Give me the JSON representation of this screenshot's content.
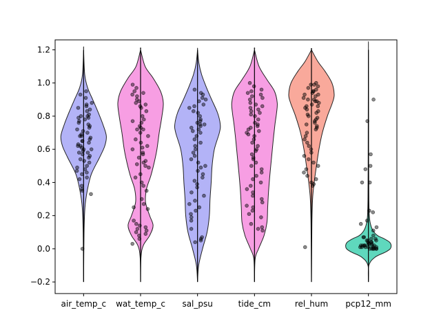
{
  "chart_data": {
    "type": "violin",
    "categories": [
      "air_temp_c",
      "wat_temp_c",
      "sal_psu",
      "tide_cm",
      "rel_hum",
      "pcp12_mm"
    ],
    "ylim": [
      -0.27,
      1.26
    ],
    "yticks": [
      -0.2,
      0.0,
      0.2,
      0.4,
      0.6,
      0.8,
      1.0,
      1.2
    ],
    "ytick_labels": [
      "−0.2",
      "0.0",
      "0.2",
      "0.4",
      "0.6",
      "0.8",
      "1.0",
      "1.2"
    ],
    "title": "",
    "xlabel": "",
    "ylabel": "",
    "grid": false,
    "violins": [
      {
        "category": "air_temp_c",
        "color": "#b3b3f7",
        "range": [
          -0.2,
          1.2
        ],
        "profile": [
          [
            -0.2,
            0.0
          ],
          [
            0.1,
            0.02
          ],
          [
            0.25,
            0.06
          ],
          [
            0.35,
            0.16
          ],
          [
            0.45,
            0.34
          ],
          [
            0.55,
            0.7
          ],
          [
            0.62,
            0.93
          ],
          [
            0.68,
            1.0
          ],
          [
            0.75,
            0.85
          ],
          [
            0.82,
            0.65
          ],
          [
            0.9,
            0.4
          ],
          [
            0.97,
            0.18
          ],
          [
            1.05,
            0.05
          ],
          [
            1.2,
            0.0
          ]
        ],
        "points": [
          0.95,
          0.93,
          0.91,
          0.88,
          0.87,
          0.86,
          0.85,
          0.84,
          0.83,
          0.81,
          0.8,
          0.8,
          0.79,
          0.79,
          0.78,
          0.77,
          0.76,
          0.75,
          0.74,
          0.73,
          0.72,
          0.71,
          0.7,
          0.69,
          0.68,
          0.68,
          0.67,
          0.66,
          0.65,
          0.65,
          0.64,
          0.63,
          0.62,
          0.62,
          0.61,
          0.6,
          0.6,
          0.59,
          0.58,
          0.58,
          0.57,
          0.56,
          0.55,
          0.54,
          0.53,
          0.52,
          0.5,
          0.49,
          0.48,
          0.47,
          0.46,
          0.45,
          0.43,
          0.42,
          0.38,
          0.36,
          0.35,
          0.33,
          0.0
        ]
      },
      {
        "category": "wat_temp_c",
        "color": "#f79ee3",
        "range": [
          -0.2,
          1.2
        ],
        "profile": [
          [
            -0.2,
            0.0
          ],
          [
            -0.05,
            0.02
          ],
          [
            0.02,
            0.12
          ],
          [
            0.08,
            0.4
          ],
          [
            0.14,
            0.55
          ],
          [
            0.2,
            0.4
          ],
          [
            0.28,
            0.22
          ],
          [
            0.36,
            0.26
          ],
          [
            0.44,
            0.45
          ],
          [
            0.52,
            0.6
          ],
          [
            0.6,
            0.72
          ],
          [
            0.7,
            0.82
          ],
          [
            0.8,
            0.94
          ],
          [
            0.88,
            1.0
          ],
          [
            0.95,
            0.88
          ],
          [
            1.03,
            0.55
          ],
          [
            1.1,
            0.2
          ],
          [
            1.2,
            0.0
          ]
        ],
        "points": [
          0.99,
          0.97,
          0.95,
          0.94,
          0.93,
          0.92,
          0.9,
          0.89,
          0.88,
          0.87,
          0.86,
          0.85,
          0.83,
          0.8,
          0.78,
          0.77,
          0.76,
          0.74,
          0.73,
          0.72,
          0.72,
          0.7,
          0.68,
          0.66,
          0.64,
          0.62,
          0.61,
          0.6,
          0.58,
          0.57,
          0.55,
          0.53,
          0.52,
          0.51,
          0.5,
          0.49,
          0.45,
          0.43,
          0.4,
          0.38,
          0.35,
          0.3,
          0.27,
          0.25,
          0.24,
          0.17,
          0.15,
          0.14,
          0.13,
          0.12,
          0.11,
          0.1,
          0.09,
          0.08,
          0.06,
          0.03
        ]
      },
      {
        "category": "sal_psu",
        "color": "#b3b3f7",
        "range": [
          -0.2,
          1.2
        ],
        "profile": [
          [
            -0.2,
            0.0
          ],
          [
            -0.1,
            0.05
          ],
          [
            0.0,
            0.22
          ],
          [
            0.1,
            0.42
          ],
          [
            0.2,
            0.52
          ],
          [
            0.3,
            0.55
          ],
          [
            0.4,
            0.6
          ],
          [
            0.5,
            0.64
          ],
          [
            0.6,
            0.74
          ],
          [
            0.7,
            0.96
          ],
          [
            0.75,
            1.0
          ],
          [
            0.82,
            0.88
          ],
          [
            0.9,
            0.62
          ],
          [
            0.97,
            0.4
          ],
          [
            1.05,
            0.18
          ],
          [
            1.12,
            0.06
          ],
          [
            1.2,
            0.0
          ]
        ],
        "points": [
          0.96,
          0.94,
          0.93,
          0.91,
          0.9,
          0.89,
          0.87,
          0.86,
          0.85,
          0.83,
          0.82,
          0.8,
          0.78,
          0.77,
          0.76,
          0.75,
          0.75,
          0.74,
          0.73,
          0.72,
          0.71,
          0.7,
          0.68,
          0.66,
          0.64,
          0.62,
          0.6,
          0.58,
          0.56,
          0.54,
          0.52,
          0.5,
          0.49,
          0.47,
          0.45,
          0.43,
          0.41,
          0.39,
          0.37,
          0.34,
          0.32,
          0.29,
          0.27,
          0.25,
          0.23,
          0.21,
          0.19,
          0.17,
          0.12,
          0.07,
          0.06,
          0.05,
          0.04
        ]
      },
      {
        "category": "tide_cm",
        "color": "#f79ee3",
        "range": [
          -0.2,
          1.2
        ],
        "profile": [
          [
            -0.2,
            0.0
          ],
          [
            -0.06,
            0.03
          ],
          [
            0.0,
            0.18
          ],
          [
            0.08,
            0.42
          ],
          [
            0.16,
            0.55
          ],
          [
            0.25,
            0.58
          ],
          [
            0.35,
            0.62
          ],
          [
            0.45,
            0.68
          ],
          [
            0.55,
            0.75
          ],
          [
            0.65,
            0.82
          ],
          [
            0.75,
            0.9
          ],
          [
            0.82,
            0.97
          ],
          [
            0.88,
            1.0
          ],
          [
            0.95,
            0.88
          ],
          [
            1.02,
            0.55
          ],
          [
            1.1,
            0.2
          ],
          [
            1.2,
            0.0
          ]
        ],
        "points": [
          1.0,
          0.98,
          0.96,
          0.95,
          0.94,
          0.93,
          0.92,
          0.91,
          0.9,
          0.88,
          0.87,
          0.86,
          0.85,
          0.84,
          0.83,
          0.82,
          0.81,
          0.8,
          0.78,
          0.76,
          0.75,
          0.74,
          0.73,
          0.72,
          0.71,
          0.7,
          0.69,
          0.68,
          0.66,
          0.64,
          0.62,
          0.6,
          0.59,
          0.57,
          0.55,
          0.54,
          0.52,
          0.5,
          0.48,
          0.46,
          0.44,
          0.42,
          0.4,
          0.38,
          0.36,
          0.34,
          0.32,
          0.3,
          0.28,
          0.26,
          0.25,
          0.23,
          0.21,
          0.19,
          0.15,
          0.13,
          0.12,
          0.11
        ]
      },
      {
        "category": "rel_hum",
        "color": "#f9a99b",
        "range": [
          -0.2,
          1.2
        ],
        "profile": [
          [
            -0.2,
            0.0
          ],
          [
            0.15,
            0.02
          ],
          [
            0.3,
            0.05
          ],
          [
            0.4,
            0.12
          ],
          [
            0.5,
            0.22
          ],
          [
            0.6,
            0.33
          ],
          [
            0.7,
            0.48
          ],
          [
            0.8,
            0.7
          ],
          [
            0.88,
            0.92
          ],
          [
            0.93,
            1.0
          ],
          [
            1.0,
            0.9
          ],
          [
            1.07,
            0.6
          ],
          [
            1.13,
            0.28
          ],
          [
            1.2,
            0.0
          ]
        ],
        "points": [
          1.0,
          0.99,
          0.99,
          0.98,
          0.97,
          0.96,
          0.95,
          0.95,
          0.94,
          0.93,
          0.93,
          0.92,
          0.91,
          0.9,
          0.9,
          0.89,
          0.89,
          0.88,
          0.87,
          0.86,
          0.86,
          0.85,
          0.84,
          0.83,
          0.82,
          0.81,
          0.8,
          0.79,
          0.78,
          0.77,
          0.76,
          0.75,
          0.74,
          0.73,
          0.72,
          0.7,
          0.68,
          0.66,
          0.64,
          0.62,
          0.6,
          0.58,
          0.56,
          0.54,
          0.52,
          0.5,
          0.48,
          0.46,
          0.44,
          0.42,
          0.4,
          0.39,
          0.38,
          0.01
        ]
      },
      {
        "category": "pcp12_mm",
        "color": "#5fd8bd",
        "range": [
          -0.2,
          1.2
        ],
        "profile": [
          [
            -0.2,
            0.0
          ],
          [
            -0.1,
            0.02
          ],
          [
            -0.05,
            0.3
          ],
          [
            -0.02,
            0.75
          ],
          [
            0.0,
            0.96
          ],
          [
            0.02,
            1.0
          ],
          [
            0.04,
            0.93
          ],
          [
            0.06,
            0.7
          ],
          [
            0.08,
            0.4
          ],
          [
            0.11,
            0.2
          ],
          [
            0.15,
            0.09
          ],
          [
            0.2,
            0.04
          ],
          [
            0.3,
            0.02
          ],
          [
            0.5,
            0.012
          ],
          [
            0.8,
            0.008
          ],
          [
            1.2,
            0.0
          ]
        ],
        "points": [
          0.9,
          0.77,
          0.57,
          0.5,
          0.48,
          0.4,
          0.4,
          0.23,
          0.22,
          0.17,
          0.15,
          0.13,
          0.11,
          0.08,
          0.07,
          0.07,
          0.06,
          0.06,
          0.05,
          0.05,
          0.05,
          0.04,
          0.04,
          0.04,
          0.03,
          0.03,
          0.03,
          0.02,
          0.02,
          0.02,
          0.02,
          0.02,
          0.02,
          0.01,
          0.01,
          0.01,
          0.01,
          0.01,
          0.01,
          0.0,
          0.0,
          0.0,
          0.0,
          0.0,
          0.0
        ]
      }
    ]
  }
}
